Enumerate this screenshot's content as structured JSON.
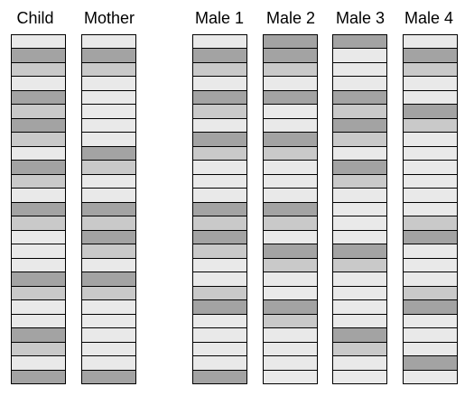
{
  "colors": {
    "dark": "#a3a3a3",
    "medium": "#c9c9c9",
    "light": "#e9e9e9",
    "border": "#000000"
  },
  "columns": [
    {
      "id": "child",
      "label": "Child",
      "bands": [
        "L",
        "D",
        "M",
        "L",
        "D",
        "M",
        "D",
        "M",
        "L",
        "D",
        "M",
        "L",
        "D",
        "M",
        "L",
        "L",
        "L",
        "D",
        "M",
        "L",
        "L",
        "D",
        "M",
        "L",
        "D"
      ]
    },
    {
      "id": "mother",
      "label": "Mother",
      "bands": [
        "L",
        "D",
        "M",
        "L",
        "L",
        "L",
        "L",
        "L",
        "D",
        "M",
        "L",
        "L",
        "D",
        "M",
        "D",
        "M",
        "L",
        "D",
        "M",
        "L",
        "L",
        "L",
        "L",
        "L",
        "D"
      ]
    },
    {
      "id": "male1",
      "label": "Male 1",
      "bands": [
        "L",
        "D",
        "M",
        "L",
        "D",
        "M",
        "L",
        "D",
        "M",
        "L",
        "L",
        "L",
        "D",
        "M",
        "D",
        "M",
        "L",
        "L",
        "M",
        "D",
        "L",
        "L",
        "L",
        "L",
        "D"
      ]
    },
    {
      "id": "male2",
      "label": "Male 2",
      "bands": [
        "D",
        "D",
        "M",
        "L",
        "D",
        "L",
        "L",
        "D",
        "M",
        "L",
        "L",
        "L",
        "D",
        "M",
        "L",
        "D",
        "M",
        "L",
        "L",
        "D",
        "M",
        "L",
        "L",
        "L",
        "L"
      ]
    },
    {
      "id": "male3",
      "label": "Male 3",
      "bands": [
        "D",
        "L",
        "L",
        "L",
        "D",
        "M",
        "D",
        "M",
        "L",
        "D",
        "M",
        "L",
        "L",
        "L",
        "L",
        "D",
        "M",
        "L",
        "L",
        "L",
        "L",
        "D",
        "M",
        "L",
        "L"
      ]
    },
    {
      "id": "male4",
      "label": "Male 4",
      "bands": [
        "L",
        "D",
        "M",
        "L",
        "L",
        "D",
        "M",
        "L",
        "L",
        "L",
        "L",
        "L",
        "L",
        "M",
        "D",
        "L",
        "L",
        "L",
        "M",
        "D",
        "L",
        "L",
        "L",
        "D",
        "L"
      ]
    }
  ]
}
